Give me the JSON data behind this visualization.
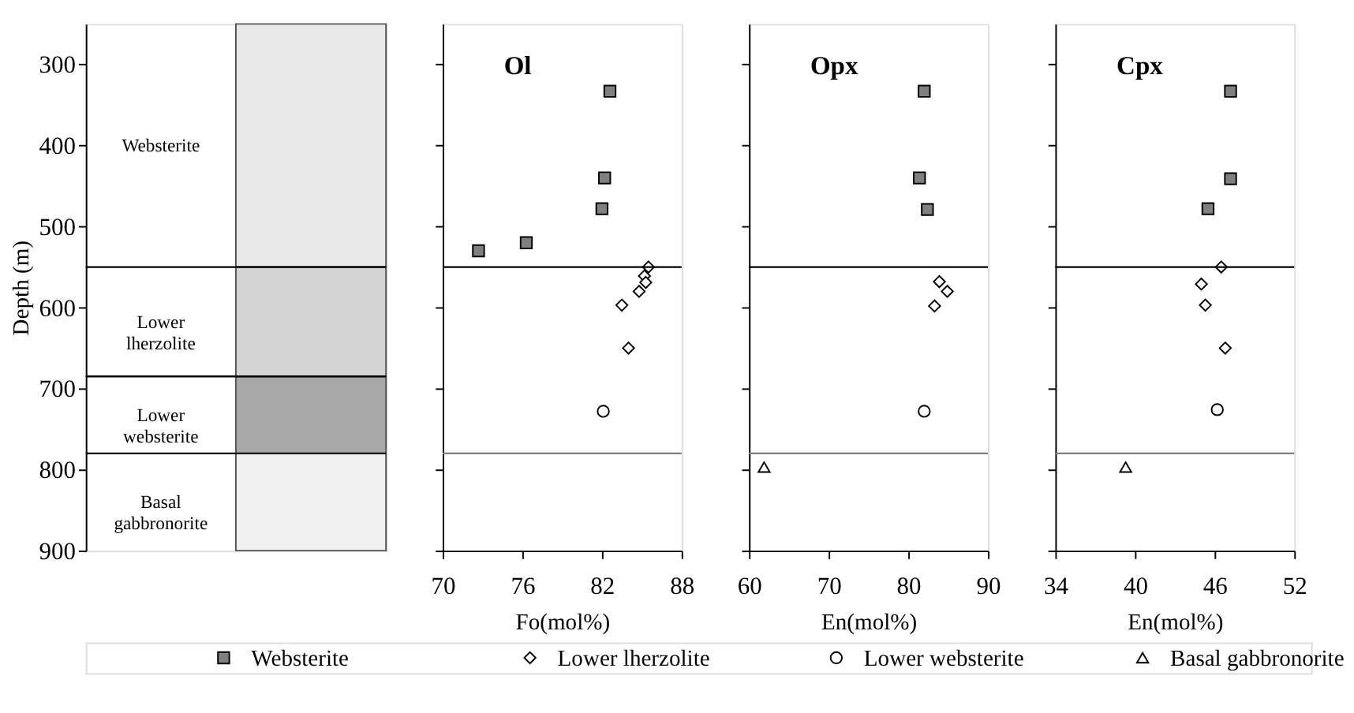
{
  "chart_data": [
    {
      "type": "bar",
      "ylabel": "Depth (m)",
      "ylim": [
        900,
        250
      ],
      "yticks": [
        300,
        400,
        500,
        600,
        700,
        800,
        900
      ],
      "tick_labels": "y",
      "categories": [
        null
      ],
      "ref_lines": [
        {
          "axis": "y",
          "value": 550,
          "color": "#000000"
        },
        {
          "axis": "y",
          "value": 685,
          "color": "#000000"
        },
        {
          "axis": "y",
          "value": 780,
          "color": "#000000"
        }
      ],
      "series": [
        {
          "name": "Websterite",
          "color": "#e8e8e8",
          "base": [
            250
          ],
          "values": [
            300
          ]
        },
        {
          "name": "Lower\nlherzolite",
          "color": "#d4d4d4",
          "base": [
            550
          ],
          "values": [
            135
          ]
        },
        {
          "name": "Lower\nwebsterite",
          "color": "#a8a8a8",
          "base": [
            685
          ],
          "values": [
            95
          ]
        },
        {
          "name": "Basal\ngabbronorite",
          "color": "#f0f0f0",
          "base": [
            780
          ],
          "values": [
            120
          ]
        }
      ]
    },
    {
      "type": "scatter",
      "title": "Ol",
      "xlabel": "Fo(mol%)",
      "xlim": [
        70,
        88
      ],
      "xticks": [
        70,
        76,
        82,
        88
      ],
      "ylim": [
        900,
        250
      ],
      "yticks": [
        300,
        400,
        500,
        600,
        700,
        800,
        900
      ],
      "tick_labels": "x",
      "legend": "bottom",
      "ref_lines": [
        {
          "axis": "y",
          "value": 550,
          "color": "#000000"
        },
        {
          "axis": "y",
          "value": 780,
          "color": "#808080"
        }
      ],
      "series": [
        {
          "name": "Websterite",
          "color": "#808080",
          "marker": "square",
          "x": [
            82.6,
            82.2,
            82.0,
            76.3,
            72.7
          ],
          "values": [
            333,
            440,
            478,
            520,
            530
          ]
        },
        {
          "name": "Lower lherzolite",
          "color": "#ffffff",
          "marker": "diamond",
          "x": [
            85.5,
            85.2,
            85.3,
            84.8,
            83.5,
            84.0
          ],
          "values": [
            550,
            561,
            569,
            580,
            597,
            650
          ]
        },
        {
          "name": "Lower websterite",
          "color": "#ffffff",
          "marker": "circle",
          "x": [
            82.1
          ],
          "values": [
            728
          ]
        }
      ]
    },
    {
      "type": "scatter",
      "title": "Opx",
      "xlabel": "En(mol%)",
      "xlim": [
        60,
        90
      ],
      "xticks": [
        60,
        70,
        80,
        90
      ],
      "ylim": [
        900,
        250
      ],
      "yticks": [
        300,
        400,
        500,
        600,
        700,
        800,
        900
      ],
      "tick_labels": "x",
      "ref_lines": [
        {
          "axis": "y",
          "value": 550,
          "color": "#000000"
        },
        {
          "axis": "y",
          "value": 780,
          "color": "#808080"
        }
      ],
      "series": [
        {
          "name": "Websterite",
          "color": "#808080",
          "marker": "square",
          "x": [
            82.0,
            81.4,
            82.4
          ],
          "values": [
            333,
            440,
            479
          ]
        },
        {
          "name": "Lower lherzolite",
          "color": "#ffffff",
          "marker": "diamond",
          "x": [
            83.9,
            84.9,
            83.3
          ],
          "values": [
            568,
            580,
            598
          ]
        },
        {
          "name": "Lower websterite",
          "color": "#ffffff",
          "marker": "circle",
          "x": [
            82.0
          ],
          "values": [
            728
          ]
        },
        {
          "name": "Basal gabbronorite",
          "color": "#ffffff",
          "marker": "triangle",
          "x": [
            61.9
          ],
          "values": [
            797
          ]
        }
      ]
    },
    {
      "type": "scatter",
      "title": "Cpx",
      "xlabel": "En(mol%)",
      "xlim": [
        34,
        52
      ],
      "xticks": [
        34,
        40,
        46,
        52
      ],
      "ylim": [
        900,
        250
      ],
      "yticks": [
        300,
        400,
        500,
        600,
        700,
        800,
        900
      ],
      "tick_labels": "x",
      "ref_lines": [
        {
          "axis": "y",
          "value": 550,
          "color": "#000000"
        },
        {
          "axis": "y",
          "value": 780,
          "color": "#808080"
        }
      ],
      "series": [
        {
          "name": "Websterite",
          "color": "#808080",
          "marker": "square",
          "x": [
            47.2,
            47.2,
            45.5
          ],
          "values": [
            333,
            441,
            478
          ]
        },
        {
          "name": "Lower lherzolite",
          "color": "#ffffff",
          "marker": "diamond",
          "x": [
            46.5,
            45.0,
            45.3,
            46.8
          ],
          "values": [
            550,
            571,
            597,
            650
          ]
        },
        {
          "name": "Lower websterite",
          "color": "#ffffff",
          "marker": "circle",
          "x": [
            46.2
          ],
          "values": [
            726
          ]
        },
        {
          "name": "Basal gabbronorite",
          "color": "#ffffff",
          "marker": "triangle",
          "x": [
            39.3
          ],
          "values": [
            797
          ]
        }
      ]
    }
  ]
}
